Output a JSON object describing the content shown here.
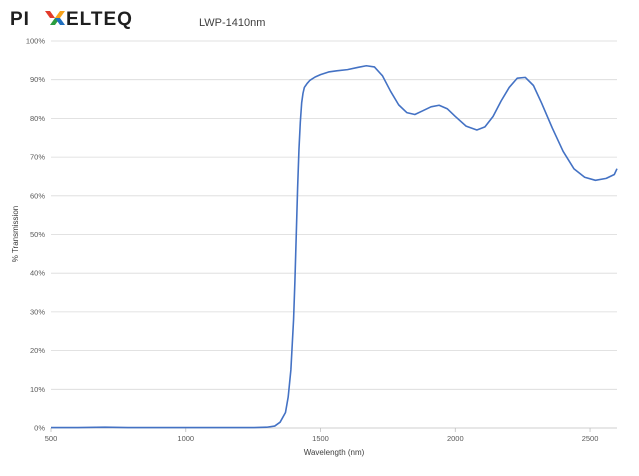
{
  "logo": {
    "text": "PIXELTEQ",
    "colors": [
      "#e23b2b",
      "#f7a21b",
      "#2a9d3f",
      "#1f6fbf"
    ]
  },
  "chart_data": {
    "type": "line",
    "title": "LWP-1410nm",
    "xlabel": "Wavelength (nm)",
    "ylabel": "% Transmission",
    "xlim": [
      500,
      2600
    ],
    "ylim": [
      0,
      100
    ],
    "x_ticks": [
      "500",
      "1000",
      "1500",
      "2000",
      "2500"
    ],
    "y_ticks": [
      "0%",
      "10%",
      "20%",
      "30%",
      "40%",
      "50%",
      "60%",
      "70%",
      "80%",
      "90%",
      "100%"
    ],
    "grid": "horizontal",
    "legend": "none",
    "series": [
      {
        "color": "#4472c4",
        "x": [
          500,
          600,
          700,
          800,
          900,
          1000,
          1100,
          1200,
          1250,
          1300,
          1330,
          1350,
          1370,
          1380,
          1390,
          1400,
          1405,
          1410,
          1415,
          1420,
          1425,
          1430,
          1435,
          1440,
          1445,
          1450,
          1460,
          1480,
          1500,
          1530,
          1560,
          1600,
          1640,
          1670,
          1700,
          1730,
          1760,
          1790,
          1820,
          1850,
          1880,
          1910,
          1940,
          1970,
          2000,
          2040,
          2080,
          2110,
          2140,
          2170,
          2200,
          2230,
          2260,
          2290,
          2320,
          2360,
          2400,
          2440,
          2480,
          2520,
          2560,
          2590,
          2600
        ],
        "y": [
          0.1,
          0.1,
          0.2,
          0.1,
          0.1,
          0.1,
          0.1,
          0.1,
          0.1,
          0.2,
          0.5,
          1.5,
          4,
          8,
          15,
          28,
          38,
          50,
          62,
          72,
          79,
          84,
          86.5,
          88,
          88.5,
          89,
          89.8,
          90.7,
          91.3,
          92,
          92.3,
          92.6,
          93.2,
          93.6,
          93.3,
          91,
          87,
          83.5,
          81.5,
          81,
          82,
          83,
          83.4,
          82.5,
          80.5,
          78,
          77,
          77.8,
          80.5,
          84.5,
          88,
          90.4,
          90.6,
          88.5,
          84,
          77.5,
          71.5,
          67,
          64.8,
          64,
          64.5,
          65.5,
          67
        ]
      }
    ]
  }
}
